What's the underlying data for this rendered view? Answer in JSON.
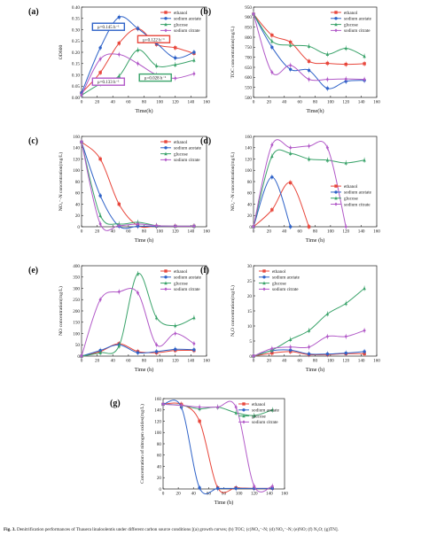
{
  "figure": {
    "caption_fig": "Fig. 3.",
    "caption_body": "Denitrification performances of Thauera linaloolentis under different carbon source conditions [(a) growth curves; (b) TOC; (c)NO₃⁻-N; (d) NO₂⁻-N; (e)NO; (f) N₂O; (g)TN].",
    "series_names": [
      "ethanol",
      "sodium acetate",
      "glucose",
      "sodium citrate"
    ],
    "series_colors": [
      "#e8473c",
      "#2e62c8",
      "#3aa36a",
      "#b25ac8"
    ]
  },
  "chart_data": [
    {
      "panel": "(a)",
      "type": "line",
      "xlabel": "Time(h)",
      "ylabel": "OD600",
      "xlim": [
        0,
        160
      ],
      "ylim": [
        0,
        0.4
      ],
      "xticks": [
        0,
        20,
        40,
        60,
        80,
        100,
        120,
        140,
        160
      ],
      "yticks": [
        0.0,
        0.05,
        0.1,
        0.15,
        0.2,
        0.25,
        0.3,
        0.35,
        0.4
      ],
      "legend": "top-right",
      "annotations": [
        {
          "text": "μ=0.145 h⁻¹",
          "color": "#2e62c8"
        },
        {
          "text": "μ=0.122 h⁻¹",
          "color": "#e8473c"
        },
        {
          "text": "μ=0.028 h⁻¹",
          "color": "#3aa36a"
        },
        {
          "text": "μ=0.133 h⁻¹",
          "color": "#b25ac8"
        }
      ],
      "series": [
        {
          "name": "ethanol",
          "x": [
            0,
            24,
            48,
            72,
            96,
            120,
            144
          ],
          "y": [
            0.02,
            0.11,
            0.24,
            0.305,
            0.235,
            0.22,
            0.195
          ]
        },
        {
          "name": "sodium acetate",
          "x": [
            0,
            24,
            48,
            72,
            96,
            120,
            144
          ],
          "y": [
            0.02,
            0.22,
            0.355,
            0.305,
            0.24,
            0.175,
            0.2
          ]
        },
        {
          "name": "glucose",
          "x": [
            0,
            24,
            48,
            72,
            96,
            120,
            144
          ],
          "y": [
            0.01,
            0.06,
            0.095,
            0.21,
            0.14,
            0.145,
            0.165
          ]
        },
        {
          "name": "sodium citrate",
          "x": [
            0,
            24,
            48,
            72,
            96,
            120,
            144
          ],
          "y": [
            0.01,
            0.17,
            0.19,
            0.15,
            0.1,
            0.085,
            0.105
          ]
        }
      ]
    },
    {
      "panel": "(b)",
      "type": "line",
      "xlabel": "Time(h)",
      "ylabel": "TOC concentration(mg/L)",
      "xlim": [
        0,
        160
      ],
      "ylim": [
        500,
        950
      ],
      "xticks": [
        0,
        20,
        40,
        60,
        80,
        100,
        120,
        140,
        160
      ],
      "yticks": [
        500,
        550,
        600,
        650,
        700,
        750,
        800,
        850,
        900,
        950
      ],
      "legend": "top-right",
      "series": [
        {
          "name": "ethanol",
          "x": [
            0,
            24,
            48,
            72,
            96,
            120,
            144
          ],
          "y": [
            915,
            810,
            775,
            680,
            670,
            665,
            668
          ]
        },
        {
          "name": "sodium acetate",
          "x": [
            0,
            24,
            48,
            72,
            96,
            120,
            144
          ],
          "y": [
            915,
            750,
            640,
            635,
            545,
            580,
            585
          ]
        },
        {
          "name": "glucose",
          "x": [
            0,
            24,
            48,
            72,
            96,
            120,
            144
          ],
          "y": [
            915,
            780,
            760,
            755,
            715,
            745,
            705
          ]
        },
        {
          "name": "sodium citrate",
          "x": [
            0,
            24,
            48,
            72,
            96,
            120,
            144
          ],
          "y": [
            915,
            625,
            660,
            590,
            590,
            592,
            590
          ]
        }
      ]
    },
    {
      "panel": "(c)",
      "type": "line",
      "xlabel": "Time (h)",
      "ylabel": "NO₃⁻-N concentration(mg/L)",
      "xlim": [
        0,
        160
      ],
      "ylim": [
        0,
        160
      ],
      "xticks": [
        0,
        20,
        40,
        60,
        80,
        100,
        120,
        140,
        160
      ],
      "yticks": [
        0,
        20,
        40,
        60,
        80,
        100,
        120,
        140,
        160
      ],
      "legend": "top-right",
      "series": [
        {
          "name": "ethanol",
          "x": [
            0,
            24,
            48,
            72,
            96,
            120,
            144
          ],
          "y": [
            150,
            120,
            40,
            2,
            1,
            1,
            1
          ]
        },
        {
          "name": "sodium acetate",
          "x": [
            0,
            24,
            48,
            72,
            96,
            120,
            144
          ],
          "y": [
            150,
            55,
            1,
            1,
            1,
            1,
            1
          ]
        },
        {
          "name": "glucose",
          "x": [
            0,
            24,
            48,
            72,
            96,
            120,
            144
          ],
          "y": [
            150,
            20,
            5,
            8,
            2,
            1,
            1
          ]
        },
        {
          "name": "sodium citrate",
          "x": [
            0,
            24,
            48,
            72,
            96,
            120,
            144
          ],
          "y": [
            150,
            5,
            2,
            5,
            2,
            1,
            1
          ]
        }
      ]
    },
    {
      "panel": "(d)",
      "type": "line",
      "xlabel": "Time (h)",
      "ylabel": "NO₂⁻-N concentration(mg/L)",
      "xlim": [
        0,
        160
      ],
      "ylim": [
        0,
        160
      ],
      "xticks": [
        0,
        20,
        40,
        60,
        80,
        100,
        120,
        140,
        160
      ],
      "yticks": [
        0,
        20,
        40,
        60,
        80,
        100,
        120,
        140,
        160
      ],
      "legend": "center-right",
      "series": [
        {
          "name": "ethanol",
          "x": [
            0,
            24,
            48,
            72
          ],
          "y": [
            0,
            30,
            78,
            0
          ]
        },
        {
          "name": "sodium acetate",
          "x": [
            0,
            24,
            48
          ],
          "y": [
            0,
            88,
            0
          ]
        },
        {
          "name": "glucose",
          "x": [
            0,
            24,
            48,
            72,
            96,
            120,
            144
          ],
          "y": [
            0,
            125,
            130,
            120,
            118,
            113,
            118
          ]
        },
        {
          "name": "sodium citrate",
          "x": [
            0,
            24,
            48,
            72,
            96,
            120
          ],
          "y": [
            0,
            145,
            140,
            143,
            140,
            0
          ]
        }
      ]
    },
    {
      "panel": "(e)",
      "type": "line",
      "xlabel": "Time (h)",
      "ylabel": "NO concentration(mg/L)",
      "xlim": [
        0,
        160
      ],
      "ylim": [
        0,
        400
      ],
      "xticks": [
        0,
        20,
        40,
        60,
        80,
        100,
        120,
        140,
        160
      ],
      "yticks": [
        0,
        50,
        100,
        150,
        200,
        250,
        300,
        350,
        400
      ],
      "legend": "top-right",
      "series": [
        {
          "name": "ethanol",
          "x": [
            0,
            24,
            48,
            72,
            96,
            120,
            144
          ],
          "y": [
            0,
            20,
            55,
            20,
            15,
            25,
            25
          ]
        },
        {
          "name": "sodium acetate",
          "x": [
            0,
            24,
            48,
            72,
            96,
            120,
            144
          ],
          "y": [
            0,
            25,
            50,
            15,
            20,
            30,
            28
          ]
        },
        {
          "name": "glucose",
          "x": [
            0,
            24,
            48,
            72,
            96,
            120,
            144
          ],
          "y": [
            0,
            15,
            45,
            365,
            170,
            135,
            170
          ]
        },
        {
          "name": "sodium citrate",
          "x": [
            0,
            24,
            48,
            72,
            96,
            120,
            144
          ],
          "y": [
            0,
            250,
            285,
            280,
            50,
            100,
            55
          ]
        }
      ]
    },
    {
      "panel": "(f)",
      "type": "line",
      "xlabel": "Time (h)",
      "ylabel": "N₂O concentration(mg/L)",
      "xlim": [
        0,
        160
      ],
      "ylim": [
        0,
        30
      ],
      "xticks": [
        0,
        20,
        40,
        60,
        80,
        100,
        120,
        140,
        160
      ],
      "yticks": [
        0,
        5,
        10,
        15,
        20,
        25,
        30
      ],
      "legend": "top-left",
      "series": [
        {
          "name": "ethanol",
          "x": [
            0,
            24,
            48,
            72,
            96,
            120,
            144
          ],
          "y": [
            0,
            1,
            1.5,
            0.5,
            0.5,
            0.8,
            0.8
          ]
        },
        {
          "name": "sodium acetate",
          "x": [
            0,
            24,
            48,
            72,
            96,
            120,
            144
          ],
          "y": [
            0,
            1.8,
            2,
            0.7,
            0.7,
            1.0,
            1.5
          ]
        },
        {
          "name": "glucose",
          "x": [
            0,
            24,
            48,
            72,
            96,
            120,
            144
          ],
          "y": [
            0,
            2,
            5.5,
            8.5,
            14,
            17.5,
            22.5
          ]
        },
        {
          "name": "sodium citrate",
          "x": [
            0,
            24,
            48,
            72,
            96,
            120,
            144
          ],
          "y": [
            0,
            2.5,
            3,
            3,
            6.5,
            6.5,
            8.5
          ]
        }
      ]
    },
    {
      "panel": "(g)",
      "type": "line",
      "xlabel": "Time (h)",
      "ylabel": "Concentration of nitrogen oxides(mg/L)",
      "xlim": [
        0,
        160
      ],
      "ylim": [
        0,
        160
      ],
      "xticks": [
        0,
        20,
        40,
        60,
        80,
        100,
        120,
        140,
        160
      ],
      "yticks": [
        0,
        20,
        40,
        60,
        80,
        100,
        120,
        140,
        160
      ],
      "legend": "top-right",
      "series": [
        {
          "name": "ethanol",
          "x": [
            0,
            24,
            48,
            72,
            96,
            120,
            144
          ],
          "y": [
            150,
            150,
            120,
            2,
            2,
            1,
            1
          ]
        },
        {
          "name": "sodium acetate",
          "x": [
            0,
            24,
            48,
            72,
            96,
            120,
            144
          ],
          "y": [
            150,
            145,
            2,
            1,
            1,
            1,
            1
          ]
        },
        {
          "name": "glucose",
          "x": [
            0,
            24,
            48,
            72,
            96,
            120,
            144
          ],
          "y": [
            150,
            148,
            142,
            145,
            135,
            130,
            140
          ]
        },
        {
          "name": "sodium citrate",
          "x": [
            0,
            24,
            48,
            72,
            96,
            120,
            144
          ],
          "y": [
            150,
            148,
            145,
            145,
            145,
            5,
            5
          ]
        }
      ]
    }
  ]
}
